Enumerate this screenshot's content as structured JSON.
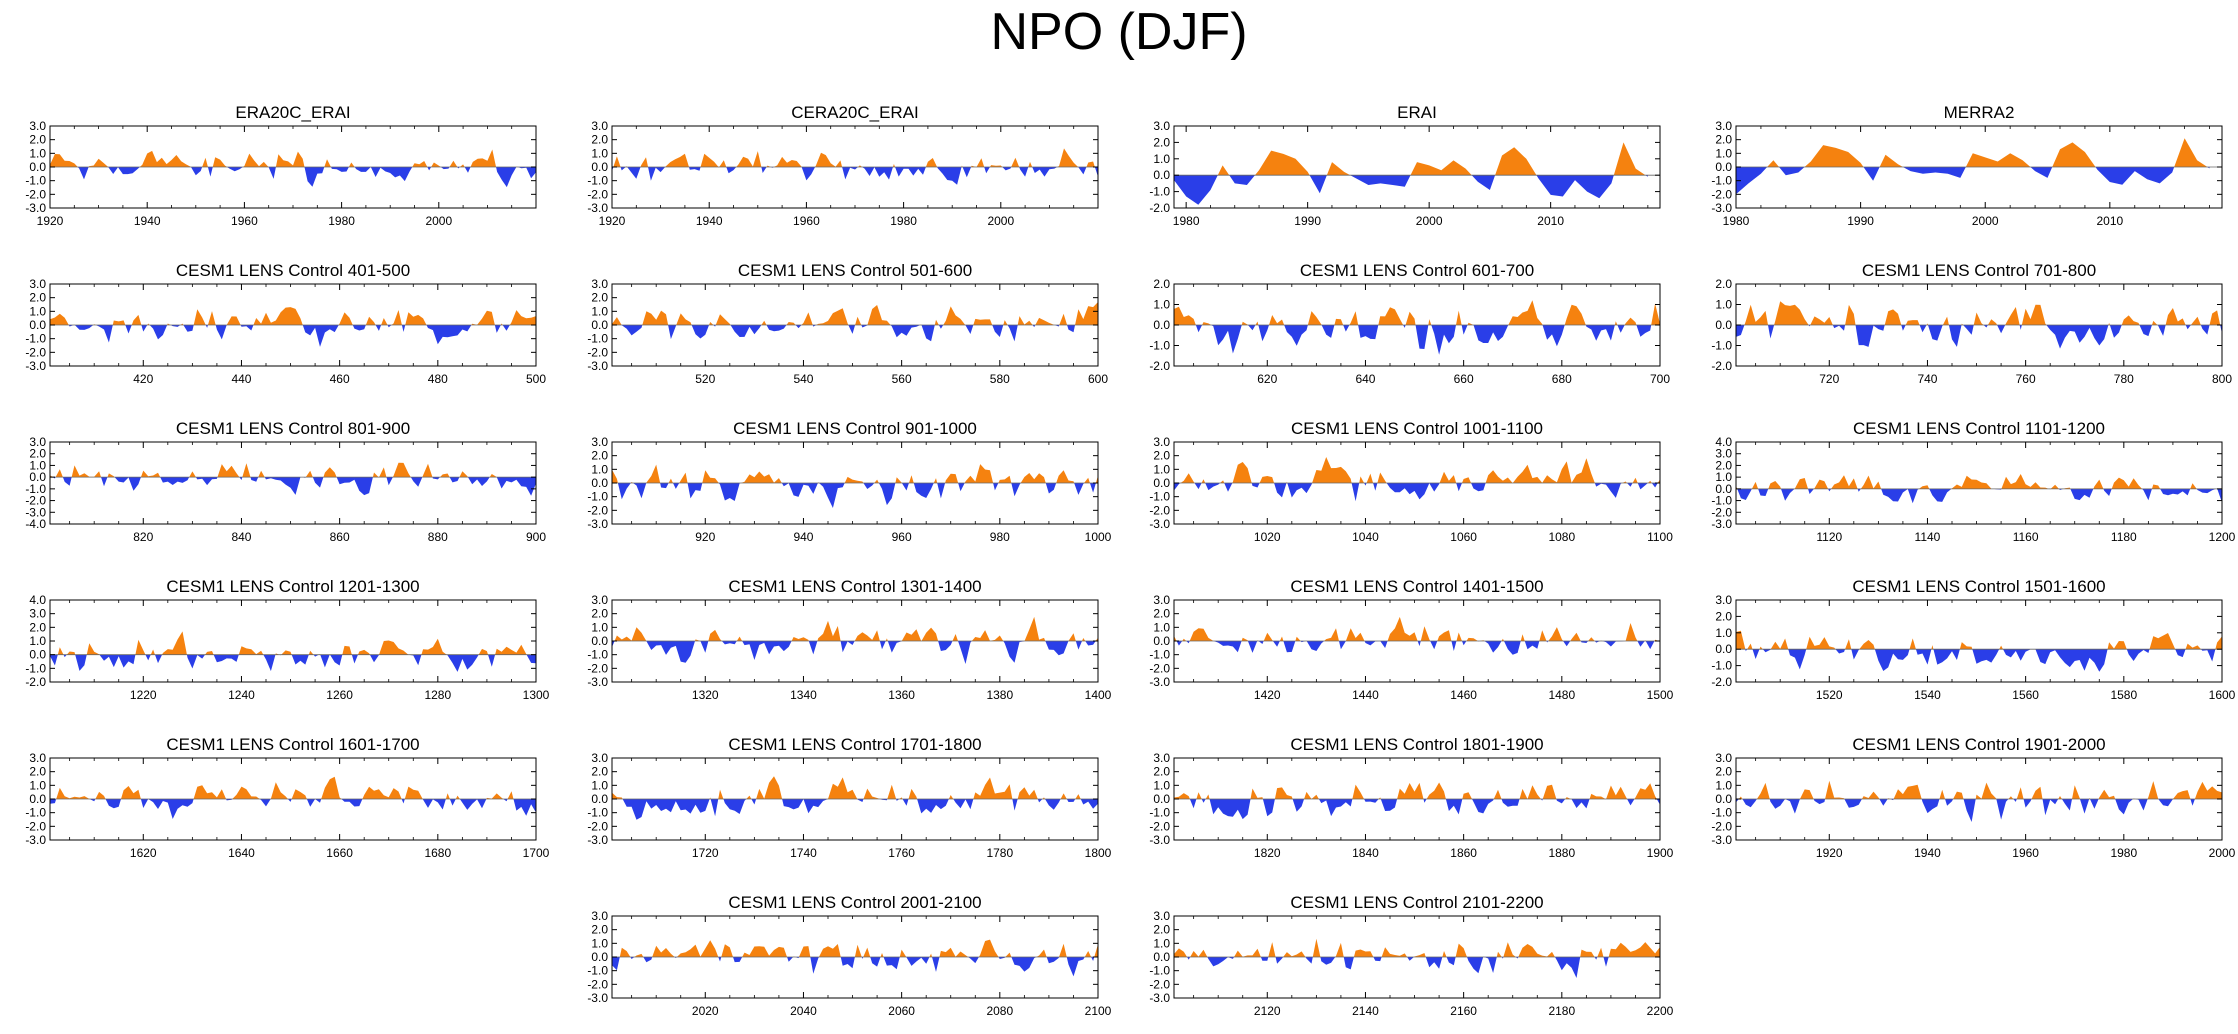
{
  "title": "NPO (DJF)",
  "colors": {
    "positive": "#f5820f",
    "negative": "#2a3ee8",
    "frame": "#000000"
  },
  "chart_data": [
    {
      "type": "area",
      "title": "ERA20C_ERAI",
      "xlim": [
        1920,
        2020
      ],
      "ylim": [
        -3,
        3
      ],
      "xticks": [
        1920,
        1940,
        1960,
        1980,
        2000
      ],
      "yticks": [
        "3.0",
        "2.0",
        "1.0",
        "0.0",
        "-1.0",
        "-2.0",
        "-3.0"
      ],
      "yticks_values": [
        3,
        2,
        1,
        0,
        -1,
        -2,
        -3
      ],
      "seed": 11,
      "amp": 0.8
    },
    {
      "type": "area",
      "title": "CERA20C_ERAI",
      "xlim": [
        1920,
        2020
      ],
      "ylim": [
        -3,
        3
      ],
      "xticks": [
        1920,
        1940,
        1960,
        1980,
        2000
      ],
      "yticks": [
        "3.0",
        "2.0",
        "1.0",
        "0.0",
        "-1.0",
        "-2.0",
        "-3.0"
      ],
      "yticks_values": [
        3,
        2,
        1,
        0,
        -1,
        -2,
        -3
      ],
      "seed": 12,
      "amp": 0.8
    },
    {
      "type": "area",
      "title": "ERAI",
      "xlim": [
        1979,
        2019
      ],
      "ylim": [
        -2,
        3
      ],
      "xticks": [
        1980,
        1990,
        2000,
        2010
      ],
      "yticks": [
        "3.0",
        "2.0",
        "1.0",
        "0.0",
        "-1.0",
        "-2.0"
      ],
      "yticks_values": [
        3,
        2,
        1,
        0,
        -1,
        -2
      ],
      "x": [
        1979,
        1980,
        1981,
        1982,
        1983,
        1984,
        1985,
        1986,
        1987,
        1988,
        1989,
        1990,
        1991,
        1992,
        1993,
        1994,
        1995,
        1996,
        1997,
        1998,
        1999,
        2000,
        2001,
        2002,
        2003,
        2004,
        2005,
        2006,
        2007,
        2008,
        2009,
        2010,
        2011,
        2012,
        2013,
        2014,
        2015,
        2016,
        2017,
        2018
      ],
      "values": [
        -0.3,
        -1.3,
        -1.8,
        -0.9,
        0.6,
        -0.5,
        -0.6,
        0.3,
        1.5,
        1.3,
        1.0,
        0.2,
        -1.1,
        0.8,
        0.2,
        -0.2,
        -0.6,
        -0.5,
        -0.6,
        -0.7,
        0.8,
        0.6,
        0.3,
        0.9,
        0.4,
        -0.4,
        -0.9,
        1.2,
        1.7,
        1.0,
        -0.2,
        -1.2,
        -1.3,
        -0.3,
        -1.0,
        -1.4,
        -0.5,
        2.0,
        0.4,
        -0.1
      ]
    },
    {
      "type": "area",
      "title": "MERRA2",
      "xlim": [
        1980,
        2019
      ],
      "ylim": [
        -3,
        3
      ],
      "xticks": [
        1980,
        1990,
        2000,
        2010
      ],
      "yticks": [
        "3.0",
        "2.0",
        "1.0",
        "0.0",
        "-1.0",
        "-2.0",
        "-3.0"
      ],
      "yticks_values": [
        3,
        2,
        1,
        0,
        -1,
        -2,
        -3
      ],
      "x": [
        1980,
        1981,
        1982,
        1983,
        1984,
        1985,
        1986,
        1987,
        1988,
        1989,
        1990,
        1991,
        1992,
        1993,
        1994,
        1995,
        1996,
        1997,
        1998,
        1999,
        2000,
        2001,
        2002,
        2003,
        2004,
        2005,
        2006,
        2007,
        2008,
        2009,
        2010,
        2011,
        2012,
        2013,
        2014,
        2015,
        2016,
        2017,
        2018
      ],
      "values": [
        -2.0,
        -1.2,
        -0.5,
        0.5,
        -0.6,
        -0.4,
        0.4,
        1.6,
        1.4,
        1.1,
        0.3,
        -1.0,
        0.9,
        0.2,
        -0.3,
        -0.5,
        -0.4,
        -0.5,
        -0.8,
        1.0,
        0.7,
        0.4,
        1.0,
        0.5,
        -0.3,
        -0.8,
        1.3,
        1.8,
        1.1,
        -0.2,
        -1.1,
        -1.3,
        -0.3,
        -0.9,
        -1.2,
        -0.4,
        2.1,
        0.5,
        -0.1
      ]
    },
    {
      "type": "area",
      "title": "CESM1 LENS Control 401-500",
      "xlim": [
        401,
        500
      ],
      "ylim": [
        -3,
        3
      ],
      "xticks": [
        420,
        440,
        460,
        480,
        500
      ],
      "yticks": [
        "3.0",
        "2.0",
        "1.0",
        "0.0",
        "-1.0",
        "-2.0",
        "-3.0"
      ],
      "yticks_values": [
        3,
        2,
        1,
        0,
        -1,
        -2,
        -3
      ],
      "seed": 401,
      "amp": 0.9
    },
    {
      "type": "area",
      "title": "CESM1 LENS Control 501-600",
      "xlim": [
        501,
        600
      ],
      "ylim": [
        -3,
        3
      ],
      "xticks": [
        520,
        540,
        560,
        580,
        600
      ],
      "yticks": [
        "3.0",
        "2.0",
        "1.0",
        "0.0",
        "-1.0",
        "-2.0",
        "-3.0"
      ],
      "yticks_values": [
        3,
        2,
        1,
        0,
        -1,
        -2,
        -3
      ],
      "seed": 501,
      "amp": 0.9
    },
    {
      "type": "area",
      "title": "CESM1 LENS Control 601-700",
      "xlim": [
        601,
        700
      ],
      "ylim": [
        -2,
        2
      ],
      "xticks": [
        620,
        640,
        660,
        680,
        700
      ],
      "yticks": [
        "2.0",
        "1.0",
        "0.0",
        "-1.0",
        "-2.0"
      ],
      "yticks_values": [
        2,
        1,
        0,
        -1,
        -2
      ],
      "seed": 601,
      "amp": 0.8
    },
    {
      "type": "area",
      "title": "CESM1 LENS Control 701-800",
      "xlim": [
        701,
        800
      ],
      "ylim": [
        -2,
        2
      ],
      "xticks": [
        720,
        740,
        760,
        780,
        800
      ],
      "yticks": [
        "2.0",
        "1.0",
        "0.0",
        "-1.0",
        "-2.0"
      ],
      "yticks_values": [
        2,
        1,
        0,
        -1,
        -2
      ],
      "seed": 701,
      "amp": 0.8
    },
    {
      "type": "area",
      "title": "CESM1 LENS Control 801-900",
      "xlim": [
        801,
        900
      ],
      "ylim": [
        -4,
        3
      ],
      "xticks": [
        820,
        840,
        860,
        880,
        900
      ],
      "yticks": [
        "3.0",
        "2.0",
        "1.0",
        "0.0",
        "-1.0",
        "-2.0",
        "-3.0",
        "-4.0"
      ],
      "yticks_values": [
        3,
        2,
        1,
        0,
        -1,
        -2,
        -3,
        -4
      ],
      "seed": 801,
      "amp": 0.9
    },
    {
      "type": "area",
      "title": "CESM1 LENS Control 901-1000",
      "xlim": [
        901,
        1000
      ],
      "ylim": [
        -3,
        3
      ],
      "xticks": [
        920,
        940,
        960,
        980,
        1000
      ],
      "yticks": [
        "3.0",
        "2.0",
        "1.0",
        "0.0",
        "-1.0",
        "-2.0",
        "-3.0"
      ],
      "yticks_values": [
        3,
        2,
        1,
        0,
        -1,
        -2,
        -3
      ],
      "seed": 901,
      "amp": 0.9
    },
    {
      "type": "area",
      "title": "CESM1 LENS Control 1001-1100",
      "xlim": [
        1001,
        1100
      ],
      "ylim": [
        -3,
        3
      ],
      "xticks": [
        1020,
        1040,
        1060,
        1080,
        1100
      ],
      "yticks": [
        "3.0",
        "2.0",
        "1.0",
        "0.0",
        "-1.0",
        "-2.0",
        "-3.0"
      ],
      "yticks_values": [
        3,
        2,
        1,
        0,
        -1,
        -2,
        -3
      ],
      "seed": 1001,
      "amp": 0.9
    },
    {
      "type": "area",
      "title": "CESM1 LENS Control 1101-1200",
      "xlim": [
        1101,
        1200
      ],
      "ylim": [
        -3,
        4
      ],
      "xticks": [
        1120,
        1140,
        1160,
        1180,
        1200
      ],
      "yticks": [
        "4.0",
        "3.0",
        "2.0",
        "1.0",
        "0.0",
        "-1.0",
        "-2.0",
        "-3.0"
      ],
      "yticks_values": [
        4,
        3,
        2,
        1,
        0,
        -1,
        -2,
        -3
      ],
      "seed": 1101,
      "amp": 0.9
    },
    {
      "type": "area",
      "title": "CESM1 LENS Control 1201-1300",
      "xlim": [
        1201,
        1300
      ],
      "ylim": [
        -2,
        4
      ],
      "xticks": [
        1220,
        1240,
        1260,
        1280,
        1300
      ],
      "yticks": [
        "4.0",
        "3.0",
        "2.0",
        "1.0",
        "0.0",
        "-1.0",
        "-2.0"
      ],
      "yticks_values": [
        4,
        3,
        2,
        1,
        0,
        -1,
        -2
      ],
      "seed": 1201,
      "amp": 0.9
    },
    {
      "type": "area",
      "title": "CESM1 LENS Control 1301-1400",
      "xlim": [
        1301,
        1400
      ],
      "ylim": [
        -3,
        3
      ],
      "xticks": [
        1320,
        1340,
        1360,
        1380,
        1400
      ],
      "yticks": [
        "3.0",
        "2.0",
        "1.0",
        "0.0",
        "-1.0",
        "-2.0",
        "-3.0"
      ],
      "yticks_values": [
        3,
        2,
        1,
        0,
        -1,
        -2,
        -3
      ],
      "seed": 1301,
      "amp": 0.9
    },
    {
      "type": "area",
      "title": "CESM1 LENS Control 1401-1500",
      "xlim": [
        1401,
        1500
      ],
      "ylim": [
        -3,
        3
      ],
      "xticks": [
        1420,
        1440,
        1460,
        1480,
        1500
      ],
      "yticks": [
        "3.0",
        "2.0",
        "1.0",
        "0.0",
        "-1.0",
        "-2.0",
        "-3.0"
      ],
      "yticks_values": [
        3,
        2,
        1,
        0,
        -1,
        -2,
        -3
      ],
      "seed": 1401,
      "amp": 0.9
    },
    {
      "type": "area",
      "title": "CESM1 LENS Control 1501-1600",
      "xlim": [
        1501,
        1600
      ],
      "ylim": [
        -2,
        3
      ],
      "xticks": [
        1520,
        1540,
        1560,
        1580,
        1600
      ],
      "yticks": [
        "3.0",
        "2.0",
        "1.0",
        "0.0",
        "-1.0",
        "-2.0"
      ],
      "yticks_values": [
        3,
        2,
        1,
        0,
        -1,
        -2
      ],
      "seed": 1501,
      "amp": 0.8
    },
    {
      "type": "area",
      "title": "CESM1 LENS Control 1601-1700",
      "xlim": [
        1601,
        1700
      ],
      "ylim": [
        -3,
        3
      ],
      "xticks": [
        1620,
        1640,
        1660,
        1680,
        1700
      ],
      "yticks": [
        "3.0",
        "2.0",
        "1.0",
        "0.0",
        "-1.0",
        "-2.0",
        "-3.0"
      ],
      "yticks_values": [
        3,
        2,
        1,
        0,
        -1,
        -2,
        -3
      ],
      "seed": 1601,
      "amp": 0.9
    },
    {
      "type": "area",
      "title": "CESM1 LENS Control 1701-1800",
      "xlim": [
        1701,
        1800
      ],
      "ylim": [
        -3,
        3
      ],
      "xticks": [
        1720,
        1740,
        1760,
        1780,
        1800
      ],
      "yticks": [
        "3.0",
        "2.0",
        "1.0",
        "0.0",
        "-1.0",
        "-2.0",
        "-3.0"
      ],
      "yticks_values": [
        3,
        2,
        1,
        0,
        -1,
        -2,
        -3
      ],
      "seed": 1701,
      "amp": 0.9
    },
    {
      "type": "area",
      "title": "CESM1 LENS Control 1801-1900",
      "xlim": [
        1801,
        1900
      ],
      "ylim": [
        -3,
        3
      ],
      "xticks": [
        1820,
        1840,
        1860,
        1880,
        1900
      ],
      "yticks": [
        "3.0",
        "2.0",
        "1.0",
        "0.0",
        "-1.0",
        "-2.0",
        "-3.0"
      ],
      "yticks_values": [
        3,
        2,
        1,
        0,
        -1,
        -2,
        -3
      ],
      "seed": 1801,
      "amp": 0.9
    },
    {
      "type": "area",
      "title": "CESM1 LENS Control 1901-2000",
      "xlim": [
        1901,
        2000
      ],
      "ylim": [
        -3,
        3
      ],
      "xticks": [
        1920,
        1940,
        1960,
        1980,
        2000
      ],
      "yticks": [
        "3.0",
        "2.0",
        "1.0",
        "0.0",
        "-1.0",
        "-2.0",
        "-3.0"
      ],
      "yticks_values": [
        3,
        2,
        1,
        0,
        -1,
        -2,
        -3
      ],
      "seed": 1901,
      "amp": 0.9
    },
    {
      "type": "area",
      "title": "CESM1 LENS Control 2001-2100",
      "xlim": [
        2001,
        2100
      ],
      "ylim": [
        -3,
        3
      ],
      "xticks": [
        2020,
        2040,
        2060,
        2080,
        2100
      ],
      "yticks": [
        "3.0",
        "2.0",
        "1.0",
        "0.0",
        "-1.0",
        "-2.0",
        "-3.0"
      ],
      "yticks_values": [
        3,
        2,
        1,
        0,
        -1,
        -2,
        -3
      ],
      "seed": 2001,
      "amp": 0.9
    },
    {
      "type": "area",
      "title": "CESM1 LENS Control 2101-2200",
      "xlim": [
        2101,
        2200
      ],
      "ylim": [
        -3,
        3
      ],
      "xticks": [
        2120,
        2140,
        2160,
        2180,
        2200
      ],
      "yticks": [
        "3.0",
        "2.0",
        "1.0",
        "0.0",
        "-1.0",
        "-2.0",
        "-3.0"
      ],
      "yticks_values": [
        3,
        2,
        1,
        0,
        -1,
        -2,
        -3
      ],
      "seed": 2101,
      "amp": 0.9
    }
  ]
}
